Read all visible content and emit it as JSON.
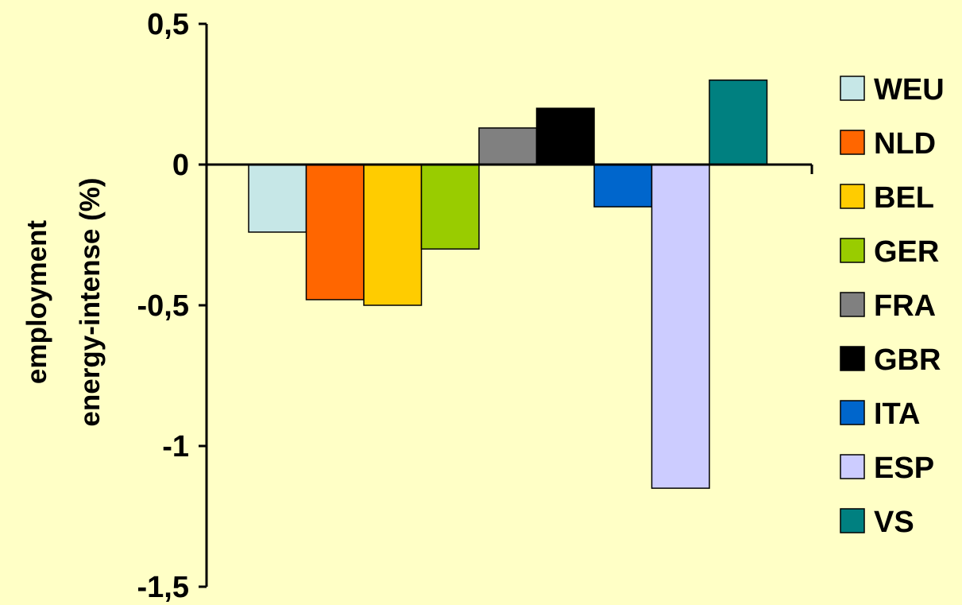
{
  "chart_data": {
    "type": "bar",
    "xlabel": "",
    "ylabel_lines": [
      "employment",
      "energy-intense (%)"
    ],
    "ylim": [
      -1.5,
      0.5
    ],
    "y_ticks": [
      {
        "value": 0.5,
        "label": "0,5"
      },
      {
        "value": 0,
        "label": "0"
      },
      {
        "value": -0.5,
        "label": "-0,5"
      },
      {
        "value": -1,
        "label": "-1"
      },
      {
        "value": -1.5,
        "label": "-1,5"
      }
    ],
    "legend_position": "right",
    "grid": false,
    "series": [
      {
        "name": "WEU",
        "value": -0.24,
        "color": "#C6E7E7"
      },
      {
        "name": "NLD",
        "value": -0.48,
        "color": "#FF6600"
      },
      {
        "name": "BEL",
        "value": -0.5,
        "color": "#FFCC00"
      },
      {
        "name": "GER",
        "value": -0.3,
        "color": "#99CC00"
      },
      {
        "name": "FRA",
        "value": 0.13,
        "color": "#808080"
      },
      {
        "name": "GBR",
        "value": 0.2,
        "color": "#000000"
      },
      {
        "name": "ITA",
        "value": -0.15,
        "color": "#0066CC"
      },
      {
        "name": "ESP",
        "value": -1.15,
        "color": "#CCCCFF"
      },
      {
        "name": "VS",
        "value": 0.3,
        "color": "#008080"
      }
    ]
  },
  "colors": {
    "background": "#FFFFC6",
    "axis": "#000000",
    "bar_stroke": "#000000"
  }
}
